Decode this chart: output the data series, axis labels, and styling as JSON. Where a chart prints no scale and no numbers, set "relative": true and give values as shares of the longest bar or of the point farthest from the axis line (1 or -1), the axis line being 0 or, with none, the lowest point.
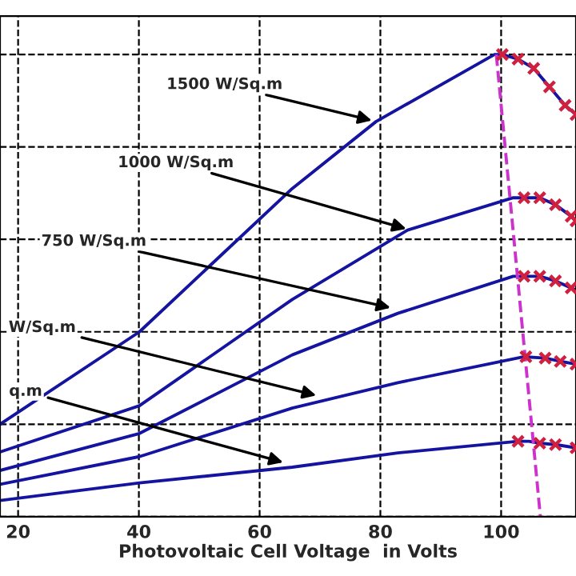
{
  "chart_data": {
    "type": "line",
    "relative": true,
    "xlabel": "Photovoltaic Cell Voltage  in Volts",
    "xlim": [
      17,
      112.4
    ],
    "xticks": [
      20,
      40,
      60,
      80,
      100
    ],
    "tick_labels": "x",
    "grid": true,
    "legend": false,
    "series": [
      {
        "color": "#1414a0",
        "x": [
          17,
          40.1,
          65.4,
          79.3,
          98.9,
          100.2,
          102.8,
          105.4,
          108,
          110.6,
          112.4
        ],
        "values": [
          0.2,
          0.4,
          0.71,
          0.855,
          1.0,
          1.0,
          0.99,
          0.97,
          0.93,
          0.89,
          0.87
        ]
      },
      {
        "color": "#1414a0",
        "x": [
          17,
          40.1,
          65.4,
          84.5,
          102,
          103.8,
          106.4,
          109,
          111.6,
          112.4
        ],
        "values": [
          0.14,
          0.24,
          0.47,
          0.62,
          0.69,
          0.69,
          0.69,
          0.675,
          0.65,
          0.64
        ]
      },
      {
        "color": "#1414a0",
        "x": [
          17,
          40.1,
          65.4,
          82.9,
          102,
          103.8,
          106.4,
          109,
          111.6,
          112.4
        ],
        "values": [
          0.1,
          0.18,
          0.35,
          0.44,
          0.52,
          0.52,
          0.52,
          0.51,
          0.495,
          0.49
        ]
      },
      {
        "color": "#1414a0",
        "x": [
          17,
          40.1,
          65.4,
          82.9,
          103.8,
          107.3,
          109.8,
          112.4
        ],
        "values": [
          0.07,
          0.13,
          0.235,
          0.29,
          0.346,
          0.343,
          0.336,
          0.33
        ]
      },
      {
        "color": "#1414a0",
        "x": [
          17,
          40.1,
          65.4,
          82.9,
          102.8,
          104.6,
          106.4,
          109,
          112.4
        ],
        "values": [
          0.035,
          0.073,
          0.107,
          0.138,
          0.163,
          0.163,
          0.159,
          0.156,
          0.149
        ]
      },
      {
        "type": "scatter",
        "color": "#d02040",
        "marker": "cross",
        "x": [
          100.2,
          102.8,
          105.4,
          108,
          110.6,
          112.4
        ],
        "values": [
          1.0,
          0.99,
          0.97,
          0.93,
          0.89,
          0.87
        ]
      },
      {
        "type": "scatter",
        "color": "#d02040",
        "marker": "cross",
        "x": [
          103.8,
          106.4,
          109,
          111.6,
          112.4
        ],
        "values": [
          0.69,
          0.69,
          0.675,
          0.65,
          0.64
        ]
      },
      {
        "type": "scatter",
        "color": "#d02040",
        "marker": "cross",
        "x": [
          103.8,
          106.4,
          109,
          111.6
        ],
        "values": [
          0.52,
          0.52,
          0.51,
          0.495
        ]
      },
      {
        "type": "scatter",
        "color": "#d02040",
        "marker": "cross",
        "x": [
          104.1,
          107.3,
          109.8,
          112.4
        ],
        "values": [
          0.346,
          0.343,
          0.336,
          0.33
        ]
      },
      {
        "type": "scatter",
        "color": "#d02040",
        "marker": "cross",
        "x": [
          102.8,
          106.4,
          109,
          112.4
        ],
        "values": [
          0.163,
          0.159,
          0.156,
          0.149
        ]
      },
      {
        "type": "line",
        "color": "#cc33cc",
        "line_style": "dashed",
        "x": [
          99.2,
          106.5
        ],
        "values": [
          1.0,
          0.0
        ]
      }
    ],
    "annotations": [
      {
        "text": "1500 W/Sq.m",
        "x": 79.3,
        "y": 0.855
      },
      {
        "text": "1000 W/Sq.m",
        "x": 85,
        "y": 0.62
      },
      {
        "text": "750 W/Sq.m",
        "x": 82.4,
        "y": 0.45
      },
      {
        "text": "W/Sq.m",
        "x": 70.1,
        "y": 0.26
      },
      {
        "text": "q.m",
        "x": 64.6,
        "y": 0.115
      }
    ]
  }
}
